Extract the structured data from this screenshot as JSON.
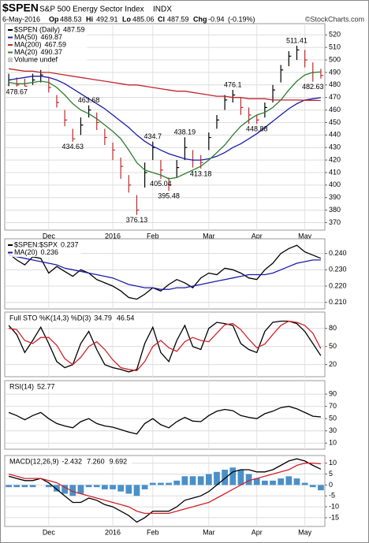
{
  "header": {
    "symbol": "$SPEN",
    "name": "S&P 500 Energy Sector Index",
    "exchange": "INDX",
    "date": "6-May-2016",
    "open_label": "Op",
    "open": 488.53,
    "high_label": "Hi",
    "high": 492.91,
    "low_label": "Lo",
    "low": 485.06,
    "close_label": "Cl",
    "close": 487.59,
    "change_label": "Chg",
    "change": -0.94,
    "change_pct": "(-0.19%)",
    "watermark": "©StockCharts.com"
  },
  "chart_data": [
    {
      "type": "ohlc",
      "categories": [
        null,
        null,
        null,
        null,
        null,
        "Dec",
        null,
        null,
        null,
        null,
        null,
        null,
        null,
        "2016",
        null,
        null,
        null,
        null,
        "Feb",
        null,
        null,
        null,
        null,
        null,
        null,
        "Mar",
        null,
        null,
        null,
        null,
        null,
        "Apr",
        null,
        null,
        null,
        null,
        null,
        "May",
        null,
        null
      ],
      "ylim": [
        364,
        529
      ],
      "yticks": [
        370,
        380,
        390,
        400,
        410,
        420,
        430,
        440,
        450,
        460,
        470,
        480,
        490,
        500,
        510,
        520
      ],
      "volume_label": "Volume undef",
      "series": [
        {
          "name": "$SPEN (Daily)",
          "kind": "ohlc",
          "color": "#000000",
          "down_color": "#d0222a",
          "high": [
            489,
            486,
            485,
            489,
            492,
            486,
            472,
            460,
            445,
            454,
            463.68,
            458,
            445,
            434,
            422,
            408,
            392,
            418,
            434.7,
            420,
            406,
            420,
            438.19,
            428,
            424,
            442,
            456,
            472,
            476.1,
            470,
            462,
            456,
            466,
            480,
            496,
            507,
            511.41,
            508,
            498,
            492.91
          ],
          "low": [
            479,
            478.67,
            479,
            480,
            482,
            474,
            462,
            447,
            434.63,
            440,
            454,
            444,
            432,
            420,
            405,
            394,
            376.13,
            398,
            420,
            405.04,
            395.48,
            406,
            420,
            414,
            413.18,
            428,
            445,
            460,
            466,
            456,
            449,
            448.88,
            454,
            466,
            482,
            495,
            500,
            494,
            482.63,
            485.06
          ],
          "values": [
            484,
            480,
            479,
            484,
            488,
            478,
            466,
            452,
            437,
            448,
            460,
            450,
            438,
            428,
            415,
            400,
            380,
            410,
            430,
            412,
            400,
            414,
            430,
            420,
            418,
            438,
            452,
            468,
            472,
            462,
            456,
            452,
            462,
            476,
            492,
            503,
            508,
            500,
            490,
            487.59
          ]
        },
        {
          "name": "MA(50)",
          "kind": "line",
          "color": "#1c1ca8",
          "values": [
            484,
            485,
            486,
            487,
            487,
            486,
            484,
            481,
            477,
            473,
            469,
            465,
            461,
            456,
            451,
            446,
            440,
            435,
            431,
            428,
            425,
            423,
            421,
            420,
            420,
            421,
            423,
            426,
            430,
            433,
            437,
            441,
            446,
            451,
            456,
            461,
            465,
            468,
            469,
            469.87
          ]
        },
        {
          "name": "MA(200)",
          "kind": "line",
          "color": "#c0262d",
          "values": [
            493,
            492,
            491,
            491,
            490,
            490,
            489,
            488,
            487,
            486,
            485,
            484,
            483,
            482,
            481,
            480,
            480,
            479,
            478,
            477,
            476,
            475,
            475,
            474,
            473,
            472,
            471,
            471,
            470,
            470,
            469,
            469,
            469,
            468,
            468,
            468,
            468,
            467.8,
            467.7,
            467.59
          ]
        },
        {
          "name": "MA(20)",
          "kind": "line",
          "color": "#2e7d32",
          "values": [
            482,
            481,
            481,
            482,
            483,
            482,
            478,
            472,
            465,
            460,
            457,
            453,
            448,
            443,
            437,
            428,
            418,
            412,
            410,
            408,
            405,
            406,
            409,
            412,
            415,
            420,
            426,
            432,
            440,
            447,
            452,
            456,
            458,
            462,
            468,
            476,
            483,
            488,
            490,
            490.37
          ]
        }
      ],
      "annotations": [
        {
          "index": 36,
          "value": 511.41
        },
        {
          "index": 1,
          "value": 478.67
        },
        {
          "index": 10,
          "value": 463.68
        },
        {
          "index": 8,
          "value": 434.63
        },
        {
          "index": 18,
          "value": 434.7
        },
        {
          "index": 22,
          "value": 438.19
        },
        {
          "index": 28,
          "value": 476.1
        },
        {
          "index": 19,
          "value": 405.04
        },
        {
          "index": 20,
          "value": 395.48
        },
        {
          "index": 24,
          "value": 413.18
        },
        {
          "index": 16,
          "value": 376.13
        },
        {
          "index": 31,
          "value": 448.88
        },
        {
          "index": 38,
          "value": 482.63
        }
      ]
    },
    {
      "type": "line",
      "ylim": [
        0.206,
        0.249
      ],
      "yticks": [
        {
          "value": 0.21,
          "label": "0.210"
        },
        {
          "value": 0.22,
          "label": "0.220"
        },
        {
          "value": 0.23,
          "label": "0.230"
        },
        {
          "value": 0.24,
          "label": "0.240"
        }
      ],
      "series": [
        {
          "name": "$SPEN:$SPX",
          "color": "#000000",
          "values": [
            0.24,
            0.236,
            0.233,
            0.238,
            0.237,
            0.228,
            0.232,
            0.229,
            0.226,
            0.23,
            0.228,
            0.224,
            0.222,
            0.22,
            0.217,
            0.213,
            0.212,
            0.215,
            0.219,
            0.217,
            0.221,
            0.224,
            0.222,
            0.219,
            0.225,
            0.228,
            0.227,
            0.231,
            0.23,
            0.228,
            0.225,
            0.224,
            0.23,
            0.234,
            0.24,
            0.243,
            0.245,
            0.241,
            0.239,
            0.237
          ]
        },
        {
          "name": "MA(20)",
          "color": "#1c1ca8",
          "values": [
            0.239,
            0.238,
            0.237,
            0.236,
            0.235,
            0.234,
            0.233,
            0.231,
            0.23,
            0.229,
            0.228,
            0.227,
            0.226,
            0.225,
            0.223,
            0.221,
            0.22,
            0.219,
            0.219,
            0.218,
            0.218,
            0.219,
            0.219,
            0.22,
            0.221,
            0.222,
            0.223,
            0.224,
            0.225,
            0.226,
            0.227,
            0.227,
            0.227,
            0.228,
            0.23,
            0.232,
            0.234,
            0.235,
            0.236,
            0.236
          ]
        }
      ]
    },
    {
      "type": "line",
      "title": "Full STO %K(14,3) %D(3)",
      "ylim": [
        0,
        107
      ],
      "yticks": [
        20,
        50,
        80
      ],
      "series": [
        {
          "color": "#000000",
          "values": [
            85,
            70,
            40,
            60,
            82,
            55,
            25,
            15,
            20,
            55,
            75,
            45,
            20,
            15,
            12,
            8,
            12,
            55,
            82,
            40,
            25,
            60,
            85,
            50,
            45,
            80,
            90,
            88,
            85,
            55,
            45,
            40,
            75,
            90,
            92,
            92,
            88,
            75,
            55,
            34.79
          ]
        },
        {
          "color": "#d0222a",
          "values": [
            80,
            78,
            60,
            55,
            65,
            65,
            52,
            30,
            20,
            32,
            50,
            58,
            45,
            28,
            15,
            12,
            10,
            25,
            50,
            60,
            48,
            42,
            58,
            65,
            60,
            58,
            72,
            86,
            88,
            78,
            62,
            48,
            54,
            70,
            85,
            92,
            90,
            85,
            72,
            46.54
          ]
        }
      ]
    },
    {
      "type": "line",
      "title": "RSI(14)",
      "ylim": [
        0,
        112
      ],
      "yticks": [
        10,
        30,
        50,
        70,
        90
      ],
      "series": [
        {
          "color": "#000000",
          "values": [
            60,
            55,
            48,
            55,
            60,
            50,
            42,
            38,
            35,
            45,
            50,
            42,
            38,
            36,
            32,
            28,
            25,
            42,
            50,
            40,
            35,
            45,
            52,
            46,
            45,
            55,
            62,
            65,
            63,
            55,
            52,
            50,
            58,
            62,
            68,
            70,
            66,
            60,
            54,
            52.77
          ]
        }
      ]
    },
    {
      "type": "line",
      "title": "MACD(12,26,9)",
      "ylim": [
        -19,
        13.5
      ],
      "yticks": [
        -15,
        -10,
        -5,
        0,
        5,
        10
      ],
      "categories": [
        null,
        null,
        null,
        null,
        null,
        "Dec",
        null,
        null,
        null,
        null,
        null,
        null,
        null,
        "2016",
        null,
        null,
        null,
        null,
        "Feb",
        null,
        null,
        null,
        null,
        null,
        null,
        "Mar",
        null,
        null,
        null,
        null,
        null,
        "Apr",
        null,
        null,
        null,
        null,
        null,
        "May",
        null,
        null
      ],
      "series": [
        {
          "kind": "bar",
          "color": "#4a90c8",
          "values": [
            -1,
            -1,
            -1,
            -1,
            0,
            -1,
            -3,
            -4,
            -5,
            -4,
            -1,
            -1,
            -2,
            -2,
            -3,
            -4,
            -5,
            -2,
            1,
            1,
            1,
            2,
            4,
            4,
            4,
            5,
            6,
            7,
            8,
            7,
            5,
            3,
            2,
            2,
            3,
            4,
            3,
            1,
            -1,
            -2.432
          ]
        },
        {
          "color": "#000000",
          "legend_label": "7.260",
          "values": [
            4,
            3,
            2,
            2,
            3,
            1,
            -2,
            -5,
            -8,
            -8,
            -6,
            -7,
            -9,
            -10,
            -12,
            -14,
            -17,
            -15,
            -12,
            -12,
            -12,
            -10,
            -7,
            -6,
            -5,
            -3,
            0,
            3,
            6,
            7,
            7,
            6,
            6,
            7,
            9,
            11,
            12,
            11,
            9,
            7.26
          ]
        },
        {
          "color": "#d0222a",
          "values": [
            5,
            4,
            3,
            3,
            3,
            2,
            1,
            -1,
            -3,
            -4,
            -5,
            -6,
            -7,
            -8,
            -9,
            -10,
            -12,
            -13,
            -13,
            -13,
            -13,
            -12,
            -11,
            -10,
            -9,
            -8,
            -6,
            -4,
            -2,
            0,
            2,
            3,
            4,
            5,
            6,
            7,
            9,
            10,
            10,
            9.692
          ]
        }
      ]
    }
  ]
}
